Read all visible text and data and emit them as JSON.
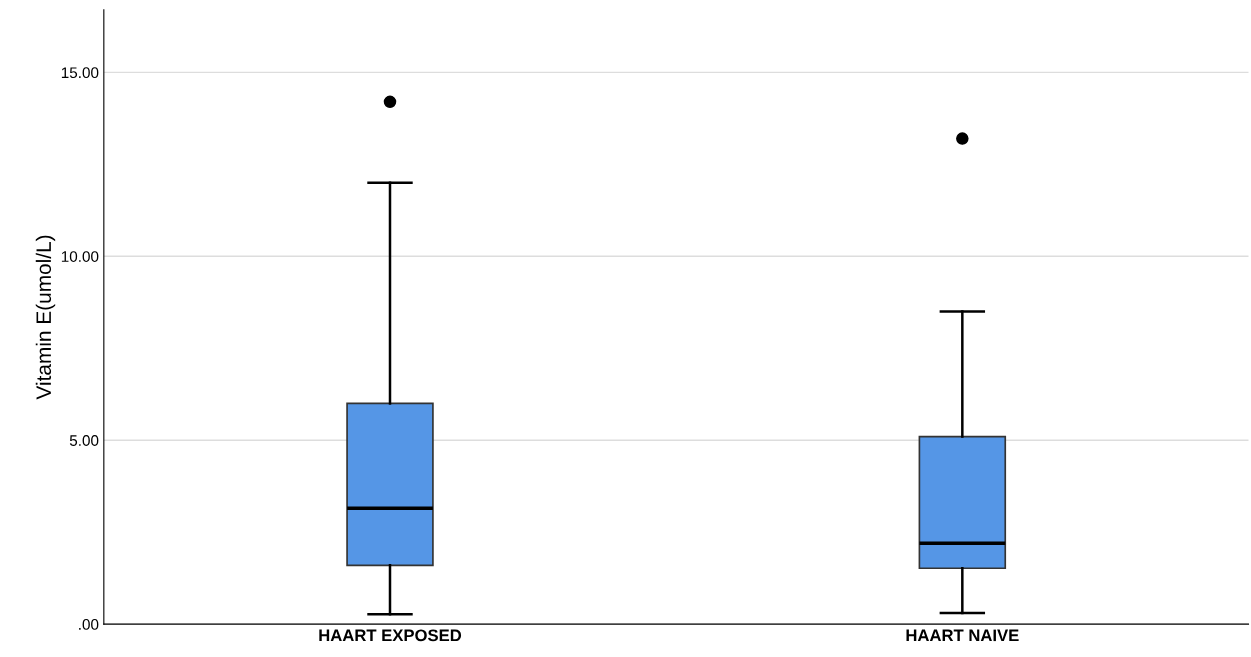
{
  "chart_data": {
    "type": "box",
    "ylabel": "Vitamin E(umol/L)",
    "categories": [
      "HAART EXPOSED",
      "HAART NAIVE"
    ],
    "color": "#5596e6",
    "boxes": [
      {
        "low": 0.27,
        "q1": 1.6,
        "median": 3.15,
        "q3": 6.0,
        "high": 12.0,
        "outliers": [
          14.2
        ]
      },
      {
        "low": 0.3,
        "q1": 1.52,
        "median": 2.2,
        "q3": 5.1,
        "high": 8.5,
        "outliers": [
          13.2
        ]
      }
    ],
    "ylim": [
      0,
      16.7
    ],
    "yticks": [
      {
        "value": 0,
        "label": ".00"
      },
      {
        "value": 5,
        "label": "5.00"
      },
      {
        "value": 10,
        "label": "10.00"
      },
      {
        "value": 15,
        "label": "15.00"
      }
    ],
    "grid": "y"
  }
}
